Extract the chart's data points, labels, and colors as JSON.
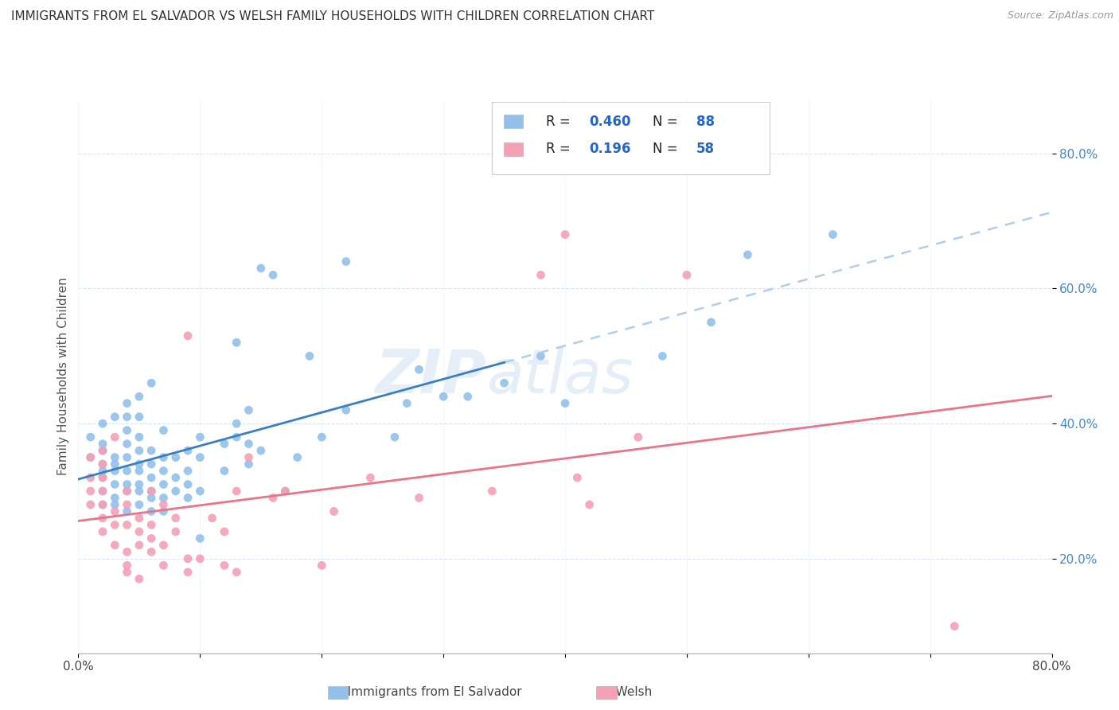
{
  "title": "IMMIGRANTS FROM EL SALVADOR VS WELSH FAMILY HOUSEHOLDS WITH CHILDREN CORRELATION CHART",
  "source": "Source: ZipAtlas.com",
  "ylabel": "Family Households with Children",
  "ytick_labels": [
    "20.0%",
    "40.0%",
    "60.0%",
    "80.0%"
  ],
  "ytick_values": [
    0.2,
    0.4,
    0.6,
    0.8
  ],
  "xlim": [
    0.0,
    0.8
  ],
  "ylim": [
    0.06,
    0.88
  ],
  "color_blue": "#92C0EA",
  "color_pink": "#F4A0B5",
  "trend_blue_solid": "#3A7FC1",
  "trend_blue_dash": "#B0CEEA",
  "trend_pink": "#E8758A",
  "blue_scatter_x": [
    0.01,
    0.01,
    0.02,
    0.02,
    0.02,
    0.02,
    0.02,
    0.02,
    0.02,
    0.02,
    0.03,
    0.03,
    0.03,
    0.03,
    0.03,
    0.03,
    0.03,
    0.04,
    0.04,
    0.04,
    0.04,
    0.04,
    0.04,
    0.04,
    0.04,
    0.04,
    0.05,
    0.05,
    0.05,
    0.05,
    0.05,
    0.05,
    0.05,
    0.05,
    0.05,
    0.06,
    0.06,
    0.06,
    0.06,
    0.06,
    0.06,
    0.06,
    0.07,
    0.07,
    0.07,
    0.07,
    0.07,
    0.07,
    0.08,
    0.08,
    0.08,
    0.09,
    0.09,
    0.09,
    0.09,
    0.1,
    0.1,
    0.1,
    0.1,
    0.12,
    0.12,
    0.13,
    0.13,
    0.13,
    0.14,
    0.14,
    0.14,
    0.15,
    0.15,
    0.16,
    0.17,
    0.18,
    0.19,
    0.2,
    0.22,
    0.22,
    0.26,
    0.27,
    0.28,
    0.3,
    0.32,
    0.35,
    0.38,
    0.4,
    0.48,
    0.52,
    0.55,
    0.62
  ],
  "blue_scatter_y": [
    0.35,
    0.38,
    0.28,
    0.3,
    0.32,
    0.33,
    0.34,
    0.36,
    0.37,
    0.4,
    0.28,
    0.29,
    0.31,
    0.33,
    0.34,
    0.35,
    0.41,
    0.27,
    0.3,
    0.31,
    0.33,
    0.35,
    0.37,
    0.39,
    0.41,
    0.43,
    0.28,
    0.3,
    0.31,
    0.33,
    0.34,
    0.36,
    0.38,
    0.41,
    0.44,
    0.27,
    0.29,
    0.3,
    0.32,
    0.34,
    0.36,
    0.46,
    0.27,
    0.29,
    0.31,
    0.33,
    0.35,
    0.39,
    0.3,
    0.32,
    0.35,
    0.29,
    0.31,
    0.33,
    0.36,
    0.23,
    0.3,
    0.35,
    0.38,
    0.33,
    0.37,
    0.38,
    0.4,
    0.52,
    0.34,
    0.37,
    0.42,
    0.36,
    0.63,
    0.62,
    0.3,
    0.35,
    0.5,
    0.38,
    0.42,
    0.64,
    0.38,
    0.43,
    0.48,
    0.44,
    0.44,
    0.46,
    0.5,
    0.43,
    0.5,
    0.55,
    0.65,
    0.68
  ],
  "pink_scatter_x": [
    0.01,
    0.01,
    0.01,
    0.01,
    0.02,
    0.02,
    0.02,
    0.02,
    0.02,
    0.02,
    0.02,
    0.03,
    0.03,
    0.03,
    0.03,
    0.04,
    0.04,
    0.04,
    0.04,
    0.04,
    0.04,
    0.05,
    0.05,
    0.05,
    0.05,
    0.06,
    0.06,
    0.06,
    0.06,
    0.07,
    0.07,
    0.07,
    0.08,
    0.08,
    0.09,
    0.09,
    0.09,
    0.1,
    0.11,
    0.12,
    0.12,
    0.13,
    0.13,
    0.14,
    0.16,
    0.17,
    0.2,
    0.21,
    0.24,
    0.28,
    0.34,
    0.38,
    0.4,
    0.41,
    0.42,
    0.46,
    0.5,
    0.72
  ],
  "pink_scatter_y": [
    0.28,
    0.3,
    0.32,
    0.35,
    0.24,
    0.26,
    0.28,
    0.3,
    0.32,
    0.34,
    0.36,
    0.22,
    0.25,
    0.27,
    0.38,
    0.18,
    0.19,
    0.21,
    0.25,
    0.28,
    0.3,
    0.17,
    0.22,
    0.24,
    0.26,
    0.21,
    0.23,
    0.25,
    0.3,
    0.19,
    0.22,
    0.28,
    0.24,
    0.26,
    0.18,
    0.2,
    0.53,
    0.2,
    0.26,
    0.19,
    0.24,
    0.18,
    0.3,
    0.35,
    0.29,
    0.3,
    0.19,
    0.27,
    0.32,
    0.29,
    0.3,
    0.62,
    0.68,
    0.32,
    0.28,
    0.38,
    0.62,
    0.1
  ]
}
